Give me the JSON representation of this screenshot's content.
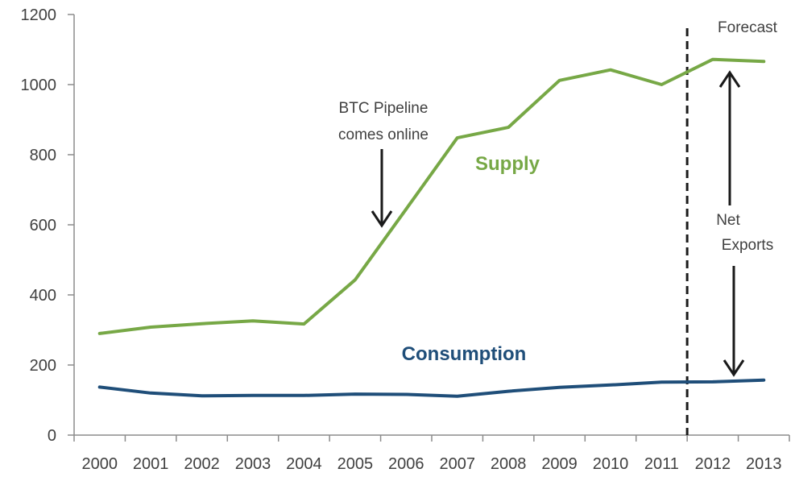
{
  "chart_data": {
    "type": "line",
    "title": "",
    "xlabel": "",
    "ylabel": "",
    "ylim": [
      0,
      1200
    ],
    "yticks": [
      0,
      200,
      400,
      600,
      800,
      1000,
      1200
    ],
    "ytick_labels": [
      "0",
      "200",
      "400",
      "600",
      "800",
      "1000",
      "1200"
    ],
    "categories": [
      "2000",
      "2001",
      "2002",
      "2003",
      "2004",
      "2005",
      "2006",
      "2007",
      "2008",
      "2009",
      "2010",
      "2011",
      "2012",
      "2013"
    ],
    "grid": false,
    "legend": "none",
    "series": [
      {
        "name": "Supply",
        "color": "#77a846",
        "values": [
          290,
          308,
          318,
          326,
          317,
          443,
          645,
          848,
          878,
          1012,
          1042,
          1000,
          1072,
          1066
        ]
      },
      {
        "name": "Consumption",
        "color": "#1f4e79",
        "values": [
          137,
          120,
          112,
          113,
          113,
          117,
          116,
          111,
          125,
          136,
          143,
          151,
          152,
          157
        ]
      }
    ],
    "annotations": {
      "forecast": "Forecast",
      "pipeline_line1": "BTC Pipeline",
      "pipeline_line2": "comes online",
      "net_exports_line1": "Net",
      "net_exports_line2": "Exports"
    },
    "forecast_divider_after": "2011"
  }
}
